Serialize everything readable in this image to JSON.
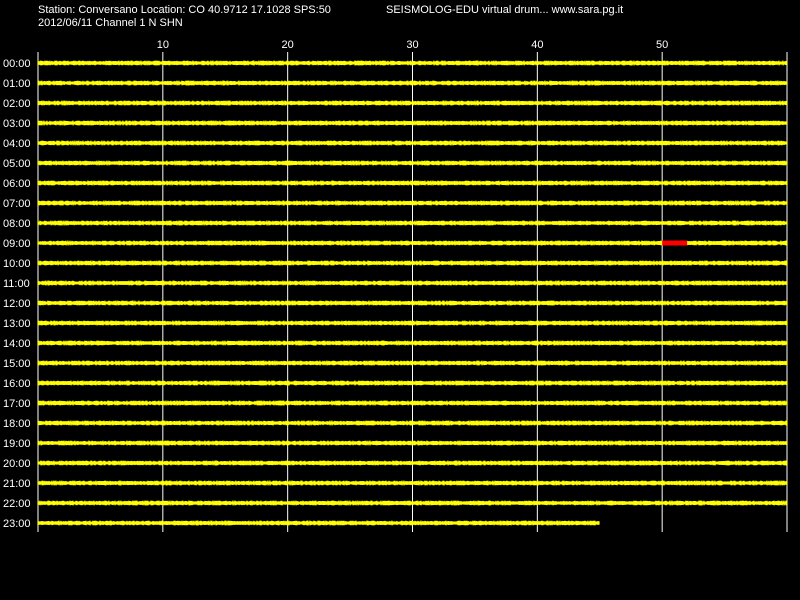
{
  "header": {
    "station_line": "Station: Conversano Location: CO 40.9712 17.1028 SPS:50",
    "brand_line": "SEISMOLOG-EDU virtual drum... www.sara.pg.it",
    "date_line": "2012/06/11  Channel 1 N SHN"
  },
  "colors": {
    "background": "#000000",
    "trace": "#ffff00",
    "event": "#ff0000",
    "grid": "#ffffff",
    "text": "#ffffff"
  },
  "chart_data": {
    "type": "line",
    "title": "",
    "xlabel": "",
    "ylabel": "",
    "xlim": [
      0,
      60
    ],
    "x_ticks": [
      10,
      20,
      30,
      40,
      50
    ],
    "x_tick_labels": [
      "10",
      "20",
      "30",
      "40",
      "50"
    ],
    "rows": [
      "00:00",
      "01:00",
      "02:00",
      "03:00",
      "04:00",
      "05:00",
      "06:00",
      "07:00",
      "08:00",
      "09:00",
      "10:00",
      "11:00",
      "12:00",
      "13:00",
      "14:00",
      "15:00",
      "16:00",
      "17:00",
      "18:00",
      "19:00",
      "20:00",
      "21:00",
      "22:00",
      "23:00"
    ],
    "last_row_end_minute": 45,
    "event_marker": {
      "row": "09:00",
      "start_minute": 50,
      "end_minute": 52
    },
    "grid": true
  }
}
